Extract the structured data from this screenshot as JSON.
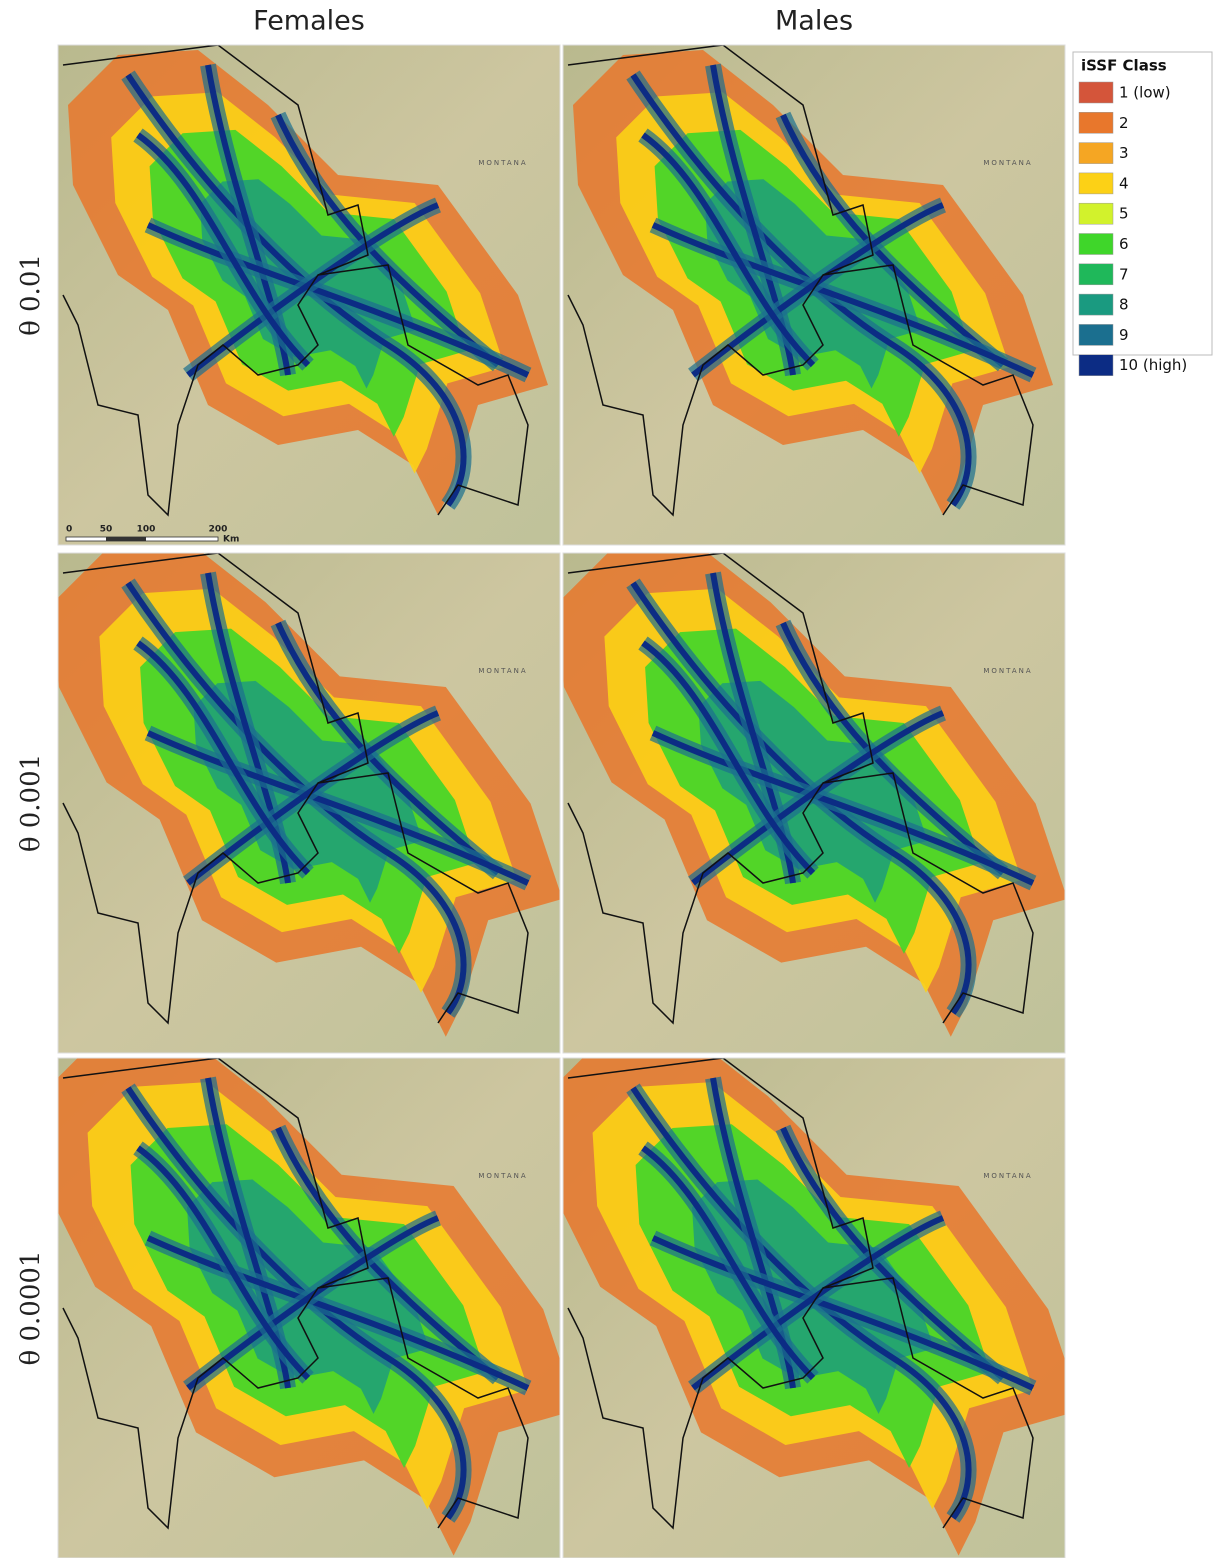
{
  "columns": [
    "Females",
    "Males"
  ],
  "rows": [
    "θ 0.01",
    "θ 0.001",
    "θ 0.0001"
  ],
  "legend": {
    "title": "iSSF Class",
    "items": [
      {
        "label": "1 (low)",
        "color": "#d4553a"
      },
      {
        "label": "2",
        "color": "#e8772c"
      },
      {
        "label": "3",
        "color": "#f5a623"
      },
      {
        "label": "4",
        "color": "#fcd116"
      },
      {
        "label": "5",
        "color": "#d2f22c"
      },
      {
        "label": "6",
        "color": "#3fd62a"
      },
      {
        "label": "7",
        "color": "#1fb85a"
      },
      {
        "label": "8",
        "color": "#1a9a80"
      },
      {
        "label": "9",
        "color": "#1b6f8f"
      },
      {
        "label": "10 (high)",
        "color": "#0c2c84"
      }
    ]
  },
  "scale_bar": {
    "labels": [
      "0",
      "50",
      "100",
      "200"
    ],
    "unit": "Km"
  },
  "map_label": "MONTANA"
}
